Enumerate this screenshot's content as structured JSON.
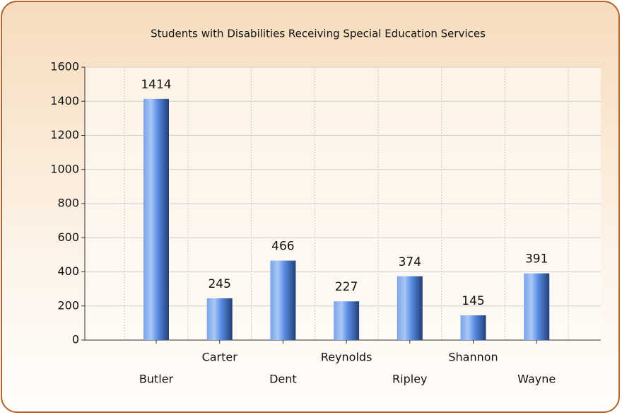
{
  "chart_data": {
    "type": "bar",
    "title": "Students with Disabilities Receiving Special Education Services",
    "categories": [
      "Butler",
      "Carter",
      "Dent",
      "Reynolds",
      "Ripley",
      "Shannon",
      "Wayne"
    ],
    "values": [
      1414,
      245,
      466,
      227,
      374,
      145,
      391
    ],
    "color": "#5b8ee6",
    "ylim": [
      0,
      1600
    ],
    "yticks": [
      0,
      200,
      400,
      600,
      800,
      1000,
      1200,
      1400,
      1600
    ],
    "grid": true
  }
}
